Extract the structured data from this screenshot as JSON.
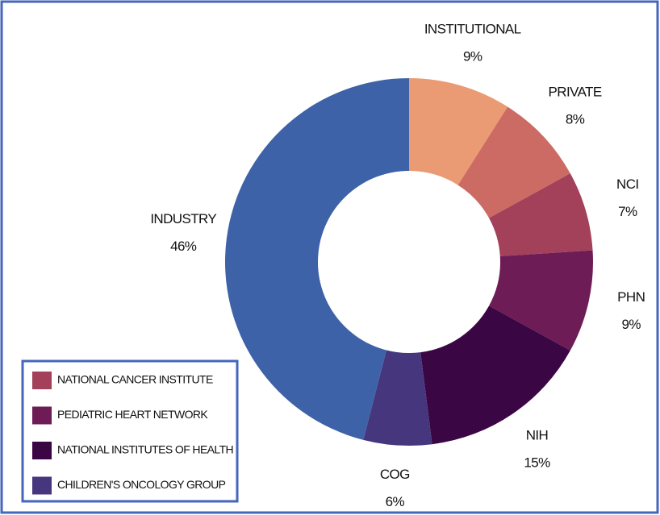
{
  "chart_data": {
    "type": "donut",
    "categories": [
      "INSTITUTIONAL",
      "PRIVATE",
      "NCI",
      "PHN",
      "NIH",
      "COG",
      "INDUSTRY"
    ],
    "values": [
      9,
      8,
      7,
      9,
      15,
      6,
      46
    ],
    "value_labels": [
      "9%",
      "8%",
      "7%",
      "9%",
      "15%",
      "6%",
      "46%"
    ],
    "colors": [
      "#eb9b73",
      "#cc6b64",
      "#a3405a",
      "#6e1c55",
      "#3b0644",
      "#46367e",
      "#3e62a8"
    ],
    "legend": [
      {
        "label": "NATIONAL CANCER INSTITUTE",
        "color": "#a3405a"
      },
      {
        "label": "PEDIATRIC HEART NETWORK",
        "color": "#6e1c55"
      },
      {
        "label": "NATIONAL INSTITUTES OF HEALTH",
        "color": "#3b0644"
      },
      {
        "label": "CHILDREN'S ONCOLOGY GROUP",
        "color": "#46367e"
      }
    ]
  }
}
